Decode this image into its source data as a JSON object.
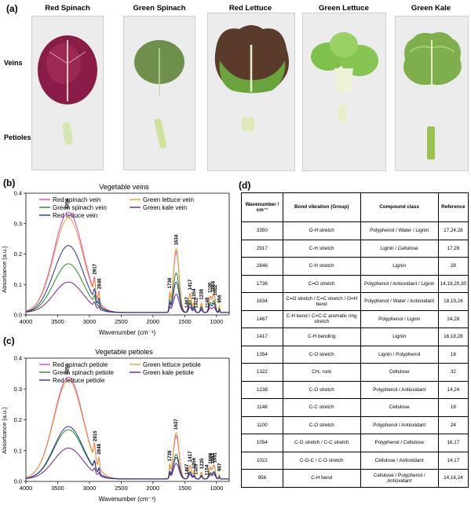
{
  "panels": {
    "a": "(a)",
    "b": "(b)",
    "c": "(c)",
    "d": "(d)"
  },
  "photos": {
    "columns": [
      "Red Spinach",
      "Green Spinach",
      "Red Lettuce",
      "Green Lettuce",
      "Green Kale"
    ],
    "rows": [
      "Veins",
      "Petioles"
    ]
  },
  "colors": {
    "red_spinach": "#e040e0",
    "green_lettuce": "#f0a020",
    "green_spinach": "#1f8f1f",
    "green_kale": "#7a1f8a",
    "red_lettuce": "#2a2ab0"
  },
  "chart_data": [
    {
      "type": "line",
      "title": "Vegetable veins",
      "xlabel": "Wavenumber (cm⁻¹)",
      "ylabel": "Absorbance (a.u.)",
      "xlim": [
        4000,
        800
      ],
      "ylim": [
        0,
        0.4
      ],
      "xticks": [
        "4000",
        "3500",
        "3000",
        "2500",
        "2000",
        "1500",
        "1000"
      ],
      "yticks": [
        "0.0",
        "0.1",
        "0.2",
        "0.3",
        "0.4"
      ],
      "legend": [
        "Red spinach vein",
        "Green lettuce vein",
        "Green spinach vein",
        "Green kale vein",
        "Red lettuce vein"
      ],
      "annotations": [
        "3350",
        "2917",
        "2846",
        "1736",
        "1634",
        "1467",
        "1417",
        "1354",
        "1322",
        "1238",
        "1148",
        "1100",
        "1054",
        "1022",
        "956"
      ],
      "series": [
        {
          "name": "Red spinach vein",
          "peak_3350": 0.33,
          "peak_1634": 0.2
        },
        {
          "name": "Green lettuce vein",
          "peak_3350": 0.31,
          "peak_1634": 0.21
        },
        {
          "name": "Green spinach vein",
          "peak_3350": 0.16,
          "peak_1634": 0.13
        },
        {
          "name": "Green kale vein",
          "peak_3350": 0.1,
          "peak_1634": 0.06
        },
        {
          "name": "Red lettuce vein",
          "peak_3350": 0.22,
          "peak_1634": 0.1
        }
      ]
    },
    {
      "type": "line",
      "title": "Vegetable petioles",
      "xlabel": "Wavenumber (cm⁻¹)",
      "ylabel": "Absorbance (a.u.)",
      "xlim": [
        4000,
        800
      ],
      "ylim": [
        0,
        0.4
      ],
      "xticks": [
        "4000",
        "3500",
        "3000",
        "2500",
        "2000",
        "1500",
        "1000"
      ],
      "yticks": [
        "0.0",
        "0.1",
        "0.2",
        "0.3",
        "0.4"
      ],
      "legend": [
        "Red spinach petiole",
        "Green lettuce petiole",
        "Green spinach petiole",
        "Green kale petiole",
        "Red lettuce petiole"
      ],
      "annotations": [
        "3352",
        "2915",
        "2848",
        "1738",
        "1637",
        "1467",
        "1417",
        "1356",
        "1325",
        "1235",
        "1154",
        "1099",
        "1057",
        "1031",
        "957"
      ],
      "series": [
        {
          "name": "Red spinach petiole",
          "peak_3350": 0.33,
          "peak_1634": 0.14
        },
        {
          "name": "Green lettuce petiole",
          "peak_3350": 0.32,
          "peak_1634": 0.15
        },
        {
          "name": "Green spinach petiole",
          "peak_3350": 0.16,
          "peak_1634": 0.08
        },
        {
          "name": "Green kale petiole",
          "peak_3350": 0.1,
          "peak_1634": 0.05
        },
        {
          "name": "Red lettuce petiole",
          "peak_3350": 0.17,
          "peak_1634": 0.07
        }
      ]
    }
  ],
  "table": {
    "headers": [
      "Wavenumber / cm⁻¹",
      "Bond vibration (Group)",
      "Compound class",
      "Reference"
    ],
    "rows": [
      [
        "3350",
        "O-H stretch",
        "Polyphenol / Water / Lignin",
        "17,24,28"
      ],
      [
        "2917",
        "C-H stretch",
        "Lignin / Cellulose",
        "17,28"
      ],
      [
        "2846",
        "C-H stretch",
        "Lignin",
        "28"
      ],
      [
        "1736",
        "C=O stretch",
        "Polyphenol / Antioxidant / Lignin",
        "14,19,29,30"
      ],
      [
        "1634",
        "C=O stretch / C=C stretch / O=H bend",
        "Polyphenol / Water / Antioxidant",
        "18,19,24"
      ],
      [
        "1467",
        "C-H bend / C=C-C aromatic ring stretch",
        "Polyphenol / Lignin",
        "24,28"
      ],
      [
        "1417",
        "C-H bending",
        "Lignin",
        "16,18,28"
      ],
      [
        "1354",
        "C-O stretch",
        "Lignin / Polyphenol",
        "18"
      ],
      [
        "1322",
        "CH₂ rock",
        "Cellulose",
        "32"
      ],
      [
        "1238",
        "C-O stretch",
        "Polyphenol / Antioxidant",
        "14,24"
      ],
      [
        "1148",
        "C-C stretch",
        "Cellulose",
        "18"
      ],
      [
        "1100",
        "C-O stretch",
        "Polyphenol / Antioxidant",
        "24"
      ],
      [
        "1054",
        "C-O stretch / C-C stretch",
        "Polyphenol / Cellulose",
        "16,17"
      ],
      [
        "1022",
        "C-O-C / C-O stretch",
        "Cellulose / Antioxidant",
        "14,17"
      ],
      [
        "956",
        "C-H bend",
        "Cellulose / Polyphenol / Antioxidant",
        "14,16,24"
      ]
    ]
  }
}
